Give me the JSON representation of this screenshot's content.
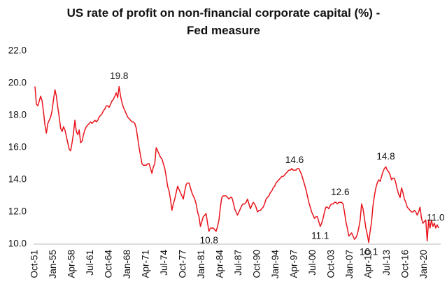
{
  "chart_data": {
    "type": "line",
    "title": "US rate of profit on non-financial corporate capital (%) - Fed measure",
    "color": "#e8141b",
    "ylim": [
      10,
      22
    ],
    "yticks": [
      {
        "value": 10,
        "label": "10.0"
      },
      {
        "value": 12,
        "label": "12.0"
      },
      {
        "value": 14,
        "label": "14.0"
      },
      {
        "value": 16,
        "label": "16.0"
      },
      {
        "value": 18,
        "label": "18.0"
      },
      {
        "value": 20,
        "label": "20.0"
      },
      {
        "value": 22,
        "label": "22.0"
      }
    ],
    "grid": false,
    "categories": [
      "Oct-51",
      null,
      null,
      null,
      null,
      null,
      null,
      null,
      null,
      null,
      null,
      null,
      null,
      "Jan-55",
      null,
      null,
      null,
      null,
      null,
      null,
      null,
      null,
      null,
      null,
      null,
      null,
      "Apr-58",
      null,
      null,
      null,
      null,
      null,
      null,
      null,
      null,
      null,
      null,
      null,
      null,
      "Jul-61",
      null,
      null,
      null,
      null,
      null,
      null,
      null,
      null,
      null,
      null,
      null,
      null,
      "Oct-64",
      null,
      null,
      null,
      null,
      null,
      null,
      null,
      null,
      null,
      null,
      null,
      null,
      "Jan-68",
      null,
      null,
      null,
      null,
      null,
      null,
      null,
      null,
      null,
      null,
      null,
      null,
      "Apr-71",
      null,
      null,
      null,
      null,
      null,
      null,
      null,
      null,
      null,
      null,
      null,
      null,
      "Jul-74",
      null,
      null,
      null,
      null,
      null,
      null,
      null,
      null,
      null,
      null,
      null,
      null,
      "Oct-77",
      null,
      null,
      null,
      null,
      null,
      null,
      null,
      null,
      null,
      null,
      null,
      null,
      "Jan-81",
      null,
      null,
      null,
      null,
      null,
      null,
      null,
      null,
      null,
      null,
      null,
      null,
      "Apr-84",
      null,
      null,
      null,
      null,
      null,
      null,
      null,
      null,
      null,
      null,
      null,
      null,
      "Jul-87",
      null,
      null,
      null,
      null,
      null,
      null,
      null,
      null,
      null,
      null,
      null,
      null,
      "Oct-90",
      null,
      null,
      null,
      null,
      null,
      null,
      null,
      null,
      null,
      null,
      null,
      null,
      "Jan-94",
      null,
      null,
      null,
      null,
      null,
      null,
      null,
      null,
      null,
      null,
      null,
      null,
      "Apr-97",
      null,
      null,
      null,
      null,
      null,
      null,
      null,
      null,
      null,
      null,
      null,
      null,
      "Jul-00",
      null,
      null,
      null,
      null,
      null,
      null,
      null,
      null,
      null,
      null,
      null,
      null,
      "Oct-03",
      null,
      null,
      null,
      null,
      null,
      null,
      null,
      null,
      null,
      null,
      null,
      null,
      "Jan-07",
      null,
      null,
      null,
      null,
      null,
      null,
      null,
      null,
      null,
      null,
      null,
      null,
      "Apr-10",
      null,
      null,
      null,
      null,
      null,
      null,
      null,
      null,
      null,
      null,
      null,
      null,
      "Jul-13",
      null,
      null,
      null,
      null,
      null,
      null,
      null,
      null,
      null,
      null,
      null,
      null,
      "Oct-16",
      null,
      null,
      null,
      null,
      null,
      null,
      null,
      null,
      null,
      null,
      null,
      null,
      "Jan-20",
      null,
      null,
      null,
      null,
      null,
      null,
      null,
      null,
      null,
      null
    ],
    "values": [
      19.8,
      18.7,
      18.6,
      18.9,
      19.2,
      18.9,
      18.2,
      17.4,
      16.9,
      17.5,
      17.7,
      17.9,
      18.3,
      19.0,
      19.6,
      19.2,
      18.5,
      17.9,
      17.2,
      17.0,
      17.3,
      17.1,
      16.7,
      16.3,
      15.9,
      15.8,
      16.3,
      16.9,
      17.7,
      17.0,
      16.8,
      17.1,
      16.3,
      16.4,
      16.8,
      17.1,
      17.3,
      17.4,
      17.5,
      17.6,
      17.5,
      17.6,
      17.7,
      17.6,
      17.7,
      17.9,
      18.0,
      18.1,
      18.3,
      18.4,
      18.6,
      18.6,
      18.5,
      18.7,
      18.9,
      19.0,
      19.2,
      19.4,
      19.1,
      19.8,
      19.2,
      18.8,
      18.5,
      18.3,
      18.1,
      17.9,
      17.8,
      17.7,
      17.6,
      17.6,
      17.5,
      17.2,
      16.6,
      16.0,
      15.5,
      15.0,
      14.9,
      14.9,
      14.9,
      15.0,
      15.0,
      14.7,
      14.4,
      14.8,
      15.0,
      16.0,
      15.8,
      15.6,
      15.4,
      15.3,
      15.0,
      14.7,
      14.2,
      13.6,
      13.3,
      12.8,
      12.1,
      12.5,
      12.8,
      13.2,
      13.6,
      13.4,
      13.2,
      13.0,
      12.8,
      13.3,
      13.7,
      13.8,
      13.8,
      13.5,
      13.2,
      13.0,
      12.8,
      12.5,
      12.0,
      11.7,
      11.1,
      11.4,
      11.7,
      11.8,
      11.9,
      11.3,
      10.8,
      11.0,
      11.0,
      11.0,
      10.9,
      10.8,
      11.1,
      11.5,
      12.3,
      12.9,
      13.0,
      13.0,
      13.0,
      12.9,
      12.8,
      12.9,
      12.9,
      12.6,
      12.2,
      12.0,
      11.8,
      12.0,
      12.2,
      12.4,
      12.5,
      12.5,
      12.6,
      12.8,
      12.5,
      12.2,
      12.4,
      12.6,
      12.5,
      12.3,
      12.0,
      12.1,
      12.1,
      12.2,
      12.3,
      12.5,
      12.8,
      12.9,
      13.0,
      13.2,
      13.3,
      13.5,
      13.6,
      13.8,
      13.9,
      14.0,
      14.1,
      14.2,
      14.2,
      14.3,
      14.4,
      14.5,
      14.6,
      14.6,
      14.7,
      14.6,
      14.6,
      14.6,
      14.7,
      14.7,
      14.5,
      14.3,
      14.0,
      13.7,
      13.4,
      13.0,
      12.6,
      12.3,
      12.0,
      11.8,
      11.6,
      11.7,
      11.7,
      11.4,
      11.1,
      11.3,
      11.6,
      12.0,
      12.3,
      12.3,
      12.2,
      12.4,
      12.5,
      12.5,
      12.6,
      12.6,
      12.5,
      12.6,
      12.6,
      12.6,
      12.5,
      12.0,
      11.4,
      11.0,
      10.5,
      10.6,
      10.7,
      10.5,
      10.3,
      10.4,
      10.6,
      11.0,
      11.5,
      12.5,
      12.2,
      11.6,
      11.0,
      10.6,
      10.1,
      10.8,
      11.4,
      12.4,
      13.0,
      13.5,
      13.8,
      14.0,
      13.9,
      14.2,
      14.5,
      14.7,
      14.8,
      14.6,
      14.5,
      14.3,
      14.0,
      14.1,
      14.1,
      13.8,
      13.4,
      13.1,
      12.9,
      13.5,
      13.2,
      12.8,
      12.6,
      12.3,
      12.2,
      12.1,
      12.0,
      12.0,
      12.1,
      12.0,
      11.8,
      12.0,
      12.3,
      11.6,
      11.3,
      11.4,
      11.5,
      10.2,
      11.5,
      11.0,
      11.5,
      11.1,
      11.3,
      11.0,
      11.2,
      11.0
    ],
    "value_labels": [
      null,
      null,
      null,
      null,
      null,
      null,
      null,
      null,
      null,
      null,
      null,
      null,
      null,
      null,
      null,
      null,
      null,
      null,
      null,
      null,
      null,
      null,
      null,
      null,
      null,
      null,
      null,
      null,
      null,
      null,
      null,
      null,
      null,
      null,
      null,
      null,
      null,
      null,
      null,
      null,
      null,
      null,
      null,
      null,
      null,
      null,
      null,
      null,
      null,
      null,
      null,
      null,
      null,
      null,
      null,
      null,
      null,
      null,
      null,
      "19.8",
      null,
      null,
      null,
      null,
      null,
      null,
      null,
      null,
      null,
      null,
      null,
      null,
      null,
      null,
      null,
      null,
      null,
      null,
      null,
      null,
      null,
      null,
      null,
      null,
      null,
      null,
      null,
      null,
      null,
      null,
      null,
      null,
      null,
      null,
      null,
      null,
      null,
      null,
      null,
      null,
      null,
      null,
      null,
      null,
      null,
      null,
      null,
      null,
      null,
      null,
      null,
      null,
      null,
      null,
      null,
      null,
      null,
      null,
      null,
      null,
      null,
      null,
      "10.8",
      null,
      null,
      null,
      null,
      null,
      null,
      null,
      null,
      null,
      null,
      null,
      null,
      null,
      null,
      null,
      null,
      null,
      null,
      null,
      null,
      null,
      null,
      null,
      null,
      null,
      null,
      null,
      null,
      null,
      null,
      null,
      null,
      null,
      null,
      null,
      null,
      null,
      null,
      null,
      null,
      null,
      null,
      null,
      null,
      null,
      null,
      null,
      null,
      null,
      null,
      null,
      null,
      null,
      null,
      null,
      null,
      null,
      null,
      null,
      "14.6",
      null,
      null,
      null,
      null,
      null,
      null,
      null,
      null,
      null,
      null,
      null,
      null,
      null,
      null,
      null,
      null,
      null,
      "11.1",
      null,
      null,
      null,
      null,
      null,
      null,
      null,
      null,
      null,
      null,
      null,
      null,
      null,
      "12.6",
      null,
      null,
      null,
      null,
      null,
      null,
      null,
      null,
      null,
      null,
      null,
      null,
      null,
      null,
      null,
      null,
      null,
      null,
      null,
      "10.1",
      null,
      null,
      null,
      null,
      null,
      null,
      null,
      null,
      null,
      null,
      null,
      "14.8",
      null,
      null,
      null,
      null,
      null,
      null,
      null,
      null,
      null,
      null,
      null,
      null,
      null,
      null,
      null,
      null,
      null,
      null,
      null,
      null,
      null,
      null,
      null,
      null,
      null,
      null,
      null,
      null,
      null,
      null,
      null,
      null,
      null,
      null,
      "11.0",
      null,
      null
    ]
  }
}
